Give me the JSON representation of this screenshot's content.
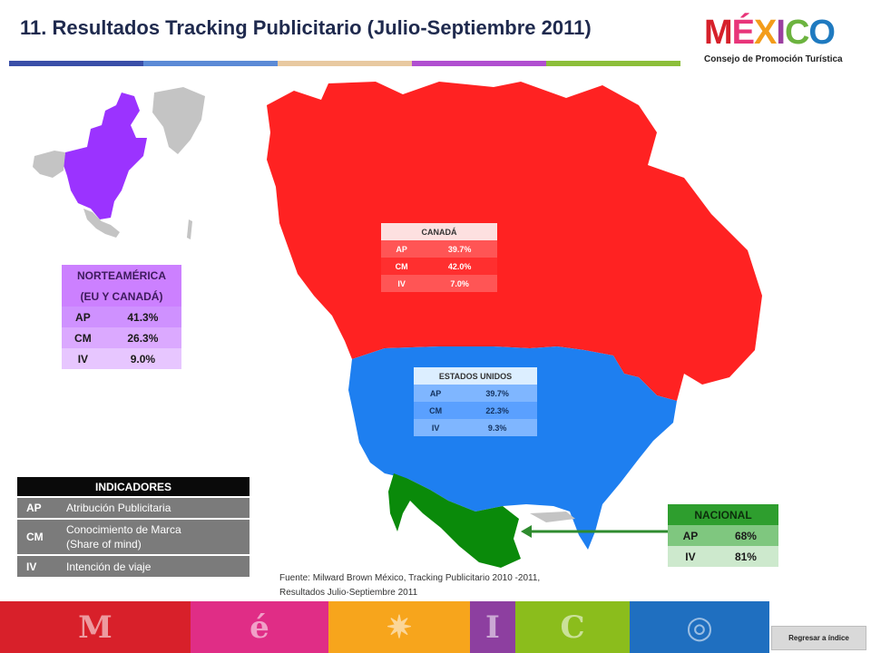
{
  "header": {
    "title": "11. Resultados Tracking Publicitario (Julio-Septiembre 2011)",
    "rule_colors": [
      "#3a4fa8",
      "#5b8ad6",
      "#e8c9a0",
      "#b04fd0",
      "#8cbf3a"
    ]
  },
  "logo": {
    "letters": [
      "M",
      "É",
      "X",
      "I",
      "C",
      "O"
    ],
    "letter_colors": [
      "#d6202a",
      "#e8357a",
      "#f39c1a",
      "#9b3fa0",
      "#6cb33f",
      "#1f7ac0"
    ],
    "subtitle": "Consejo de Promoción Turística"
  },
  "norteamerica": {
    "title_line1": "NORTEAMÉRICA",
    "title_line2": "(EU Y CANADÁ)",
    "rows": [
      {
        "code": "AP",
        "value": "41.3%"
      },
      {
        "code": "CM",
        "value": "26.3%"
      },
      {
        "code": "IV",
        "value": "9.0%"
      }
    ]
  },
  "canada": {
    "title": "CANADÁ",
    "rows": [
      {
        "code": "AP",
        "value": "39.7%"
      },
      {
        "code": "CM",
        "value": "42.0%"
      },
      {
        "code": "IV",
        "value": "7.0%"
      }
    ]
  },
  "estados_unidos": {
    "title": "ESTADOS UNIDOS",
    "rows": [
      {
        "code": "AP",
        "value": "39.7%"
      },
      {
        "code": "CM",
        "value": "22.3%"
      },
      {
        "code": "IV",
        "value": "9.3%"
      }
    ]
  },
  "nacional": {
    "title": "NACIONAL",
    "rows": [
      {
        "code": "AP",
        "value": "68%"
      },
      {
        "code": "IV",
        "value": "81%"
      }
    ]
  },
  "indicadores": {
    "title": "INDICADORES",
    "rows": [
      {
        "code": "AP",
        "desc": "Atribución Publicitaria"
      },
      {
        "code": "CM",
        "desc_line1": "Conocimiento de Marca",
        "desc_line2": "(Share of mind)"
      },
      {
        "code": "IV",
        "desc": "Intención de viaje"
      }
    ]
  },
  "map_colors": {
    "canada": "#ff2222",
    "usa": "#1e7ff0",
    "mexico": "#0a8a0a",
    "na_highlight": "#9b33ff",
    "other": "#c4c4c4",
    "arrow": "#2e8b2e"
  },
  "source": {
    "line1": "Fuente: Milward Brown México, Tracking Publicitario 2010 -2011,",
    "line2": "Resultados Julio-Septiembre 2011"
  },
  "footer": {
    "colors": [
      "#d8202a",
      "#e02d86",
      "#f7a51c",
      "#8d3fa0",
      "#8bbd1c",
      "#1f6fc0"
    ],
    "icons": [
      "mayan-icon",
      "spiral-icon",
      "sun-icon",
      "pillar-icon",
      "snail-icon",
      "eye-icon"
    ],
    "glyphs": [
      "M",
      "é",
      "✷",
      "I",
      "C",
      "◎"
    ]
  },
  "back_button": {
    "label": "Regresar a índice"
  }
}
